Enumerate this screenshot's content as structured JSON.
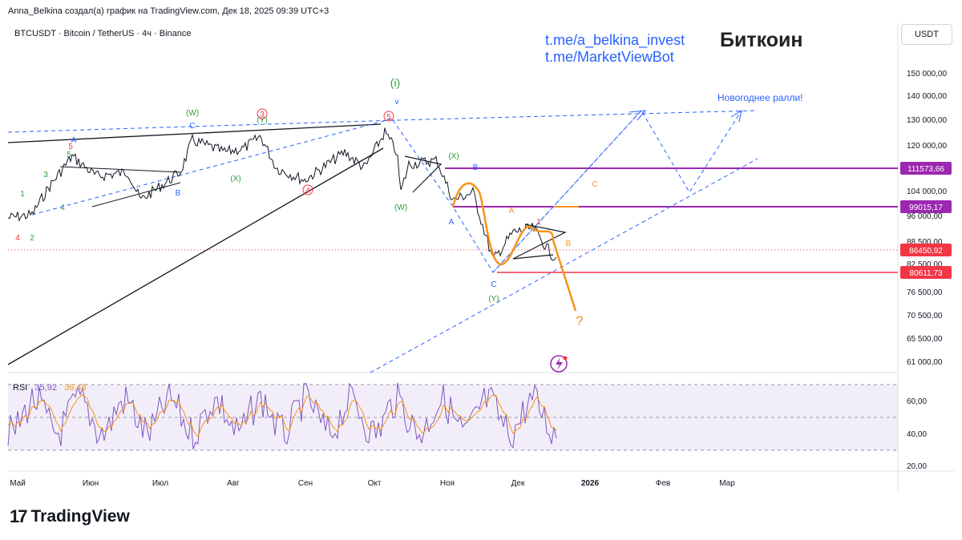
{
  "header": {
    "author_line": "Anna_Belkina создал(а) график на TradingView.com, Дек 18, 2025 09:39 UTC+3",
    "symbol_line": "BTCUSDT · Bitcoin / TetherUS · 4ч · Binance",
    "currency": "USDT"
  },
  "overlay": {
    "links": [
      "t.me/a_belkina_invest",
      "t.me/MarketViewBot"
    ],
    "title": "Биткоин",
    "rally_note": "Новогоднее ралли!",
    "question": "?"
  },
  "price_axis": {
    "ticks": [
      "150 000,00",
      "140 000,00",
      "130 000,00",
      "120 000,00",
      "104 000,00",
      "96 000,00",
      "88 500,00",
      "82 500,00",
      "76 500,00",
      "70 500,00",
      "65 500,00",
      "61 000,00"
    ]
  },
  "price_tags": [
    {
      "label": "111573,66",
      "color": "#9c27b0"
    },
    {
      "label": "99015,17",
      "color": "#9c27b0"
    },
    {
      "label": "86450,92",
      "color": "#f23645"
    },
    {
      "label": "80611,73",
      "color": "#f23645"
    }
  ],
  "rsi": {
    "label": "RSI",
    "value1": "35,92",
    "value2": "36,43",
    "ticks": [
      "60,00",
      "40,00",
      "20,00"
    ]
  },
  "time_axis": {
    "labels": [
      "Май",
      "Июн",
      "Июл",
      "Авг",
      "Сен",
      "Окт",
      "Ноя",
      "Дек",
      "2026",
      "Фев",
      "Мар"
    ]
  },
  "wave_labels": [
    {
      "text": "4",
      "color": "#f23645"
    },
    {
      "text": "2",
      "color": "#2e9e3f"
    },
    {
      "text": "1",
      "color": "#2e9e3f"
    },
    {
      "text": "3",
      "color": "#2e9e3f"
    },
    {
      "text": "4",
      "color": "#2e9e3f"
    },
    {
      "text": "5",
      "color": "#2e9e3f"
    },
    {
      "text": "5",
      "color": "#f23645"
    },
    {
      "text": "A",
      "color": "#2962ff"
    },
    {
      "text": "B",
      "color": "#2962ff"
    },
    {
      "text": "(W)",
      "color": "#2e9e3f"
    },
    {
      "text": "C",
      "color": "#2962ff"
    },
    {
      "text": "(X)",
      "color": "#2e9e3f"
    },
    {
      "text": "3",
      "color": "#f23645"
    },
    {
      "text": "(Y)",
      "color": "#2e9e3f"
    },
    {
      "text": "4",
      "color": "#f23645"
    },
    {
      "text": "5",
      "color": "#f23645"
    },
    {
      "text": "(i)",
      "color": "#2e9e3f"
    },
    {
      "text": "v",
      "color": "#2962ff"
    },
    {
      "text": "(X)",
      "color": "#2e9e3f"
    },
    {
      "text": "(W)",
      "color": "#2e9e3f"
    },
    {
      "text": "B",
      "color": "#2962ff"
    },
    {
      "text": "A",
      "color": "#2962ff"
    },
    {
      "text": "C",
      "color": "#2962ff"
    },
    {
      "text": "(Y)",
      "color": "#2e9e3f"
    },
    {
      "text": "A",
      "color": "#f7931a"
    },
    {
      "text": "C",
      "color": "#f7931a"
    },
    {
      "text": "B",
      "color": "#f7931a"
    },
    {
      "text": "1",
      "color": "#f23645"
    }
  ],
  "chart_data": {
    "type": "line",
    "title": "Биткоин",
    "xlabel": "",
    "ylabel": "",
    "y_scale": "log",
    "ylim": [
      58000,
      160000
    ],
    "x": [
      "Май",
      "Июн",
      "Июл",
      "Авг",
      "Сен",
      "Окт",
      "Ноя",
      "Дек"
    ],
    "series": [
      {
        "name": "BTCUSDT",
        "values": [
          94000,
          106000,
          107000,
          116000,
          110000,
          114000,
          110000,
          92000
        ]
      },
      {
        "name": "RSI",
        "values": [
          50,
          48,
          52,
          50,
          46,
          55,
          42,
          40
        ]
      }
    ],
    "levels": [
      111573.66,
      99015.17,
      86450.92,
      80611.73
    ],
    "legend": "none",
    "grid": false,
    "projection": "Новогоднее ралли!",
    "brand": "TradingView"
  }
}
